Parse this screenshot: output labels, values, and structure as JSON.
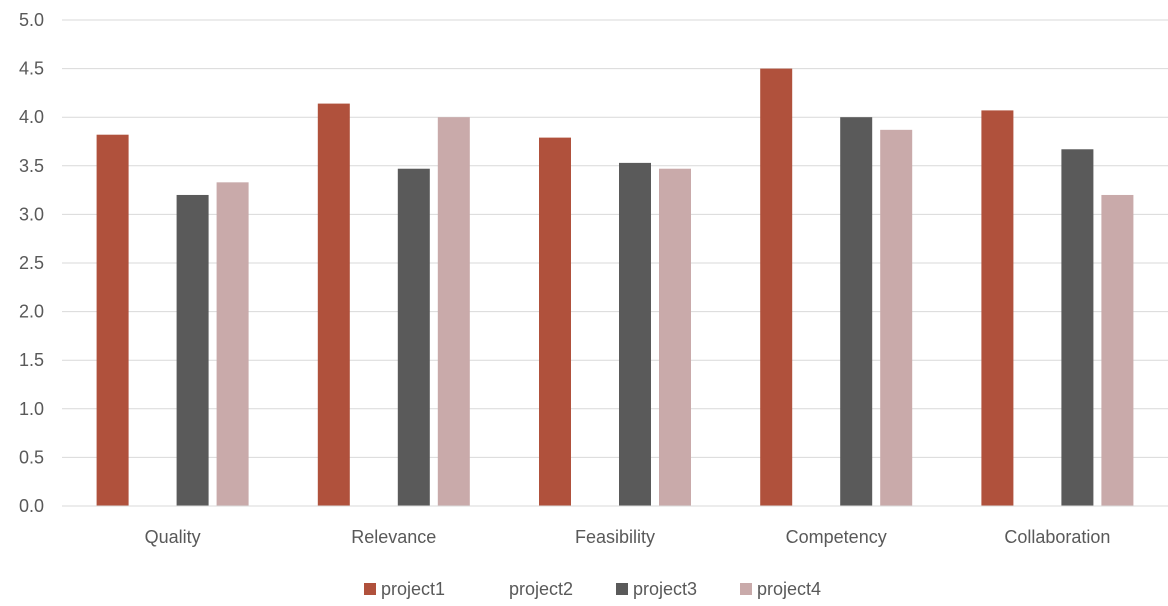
{
  "chart_data": {
    "type": "bar",
    "title": "",
    "xlabel": "",
    "ylabel": "",
    "ylim": [
      0,
      5
    ],
    "ytick_step": 0.5,
    "ytick_labels": [
      "0.0",
      "0.5",
      "1.0",
      "1.5",
      "2.0",
      "2.5",
      "3.0",
      "3.5",
      "4.0",
      "4.5",
      "5.0"
    ],
    "grid": true,
    "legend_position": "bottom",
    "categories": [
      "Quality",
      "Relevance",
      "Feasibility",
      "Competency",
      "Collaboration"
    ],
    "series": [
      {
        "name": "project1",
        "color": "#b0513c",
        "values": [
          3.82,
          4.14,
          3.79,
          4.5,
          4.07
        ]
      },
      {
        "name": "project2",
        "color": "#ffffff",
        "values": [
          0,
          0,
          0,
          0,
          0
        ]
      },
      {
        "name": "project3",
        "color": "#5a5a5a",
        "values": [
          3.2,
          3.47,
          3.53,
          4.0,
          3.67
        ]
      },
      {
        "name": "project4",
        "color": "#c9aaaa",
        "values": [
          3.33,
          4.0,
          3.47,
          3.87,
          3.2
        ]
      }
    ]
  }
}
